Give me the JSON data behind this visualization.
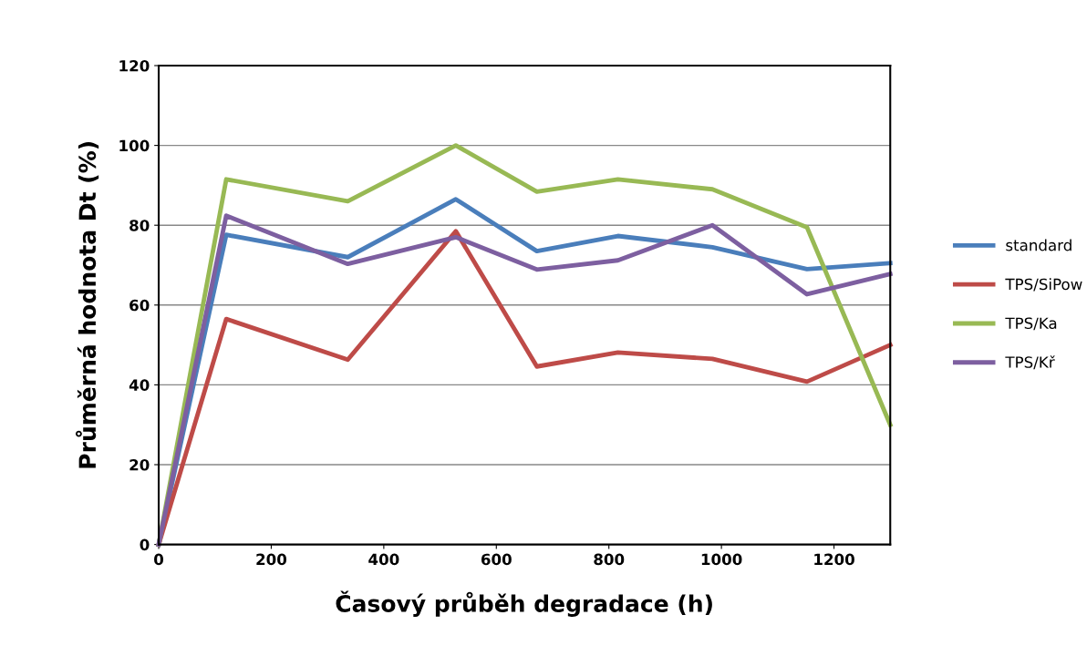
{
  "chart_data": {
    "type": "line",
    "xlabel": "Časový průběh degradace (h)",
    "ylabel": "Průměrná hodnota Dt (%)",
    "x": [
      0,
      120,
      336,
      528,
      672,
      816,
      984,
      1152,
      1300
    ],
    "series": [
      {
        "name": "standard",
        "color": "#4a7ebb",
        "values": [
          0,
          77.6,
          72,
          86.5,
          73.5,
          77.3,
          74.5,
          69,
          70.5
        ]
      },
      {
        "name": "TPS/SiPow",
        "color": "#be4b48",
        "values": [
          0,
          56.5,
          46.3,
          78.5,
          44.6,
          48.1,
          46.5,
          40.8,
          50
        ]
      },
      {
        "name": "TPS/Ka",
        "color": "#98b954",
        "values": [
          0,
          91.5,
          86,
          100,
          88.4,
          91.5,
          89,
          79.5,
          30
        ]
      },
      {
        "name": "TPS/Kř",
        "color": "#7d5fa0",
        "values": [
          0,
          82.4,
          70.3,
          77,
          68.9,
          71.2,
          80,
          62.7,
          67.8
        ]
      }
    ],
    "xlim": [
      0,
      1300
    ],
    "xticks": [
      0,
      200,
      400,
      600,
      800,
      1000,
      1200
    ],
    "ylim": [
      0,
      120
    ],
    "yticks": [
      0,
      20,
      40,
      60,
      80,
      100,
      120
    ],
    "grid": "y",
    "legend": "right",
    "marker": "none",
    "line_style": "solid"
  }
}
